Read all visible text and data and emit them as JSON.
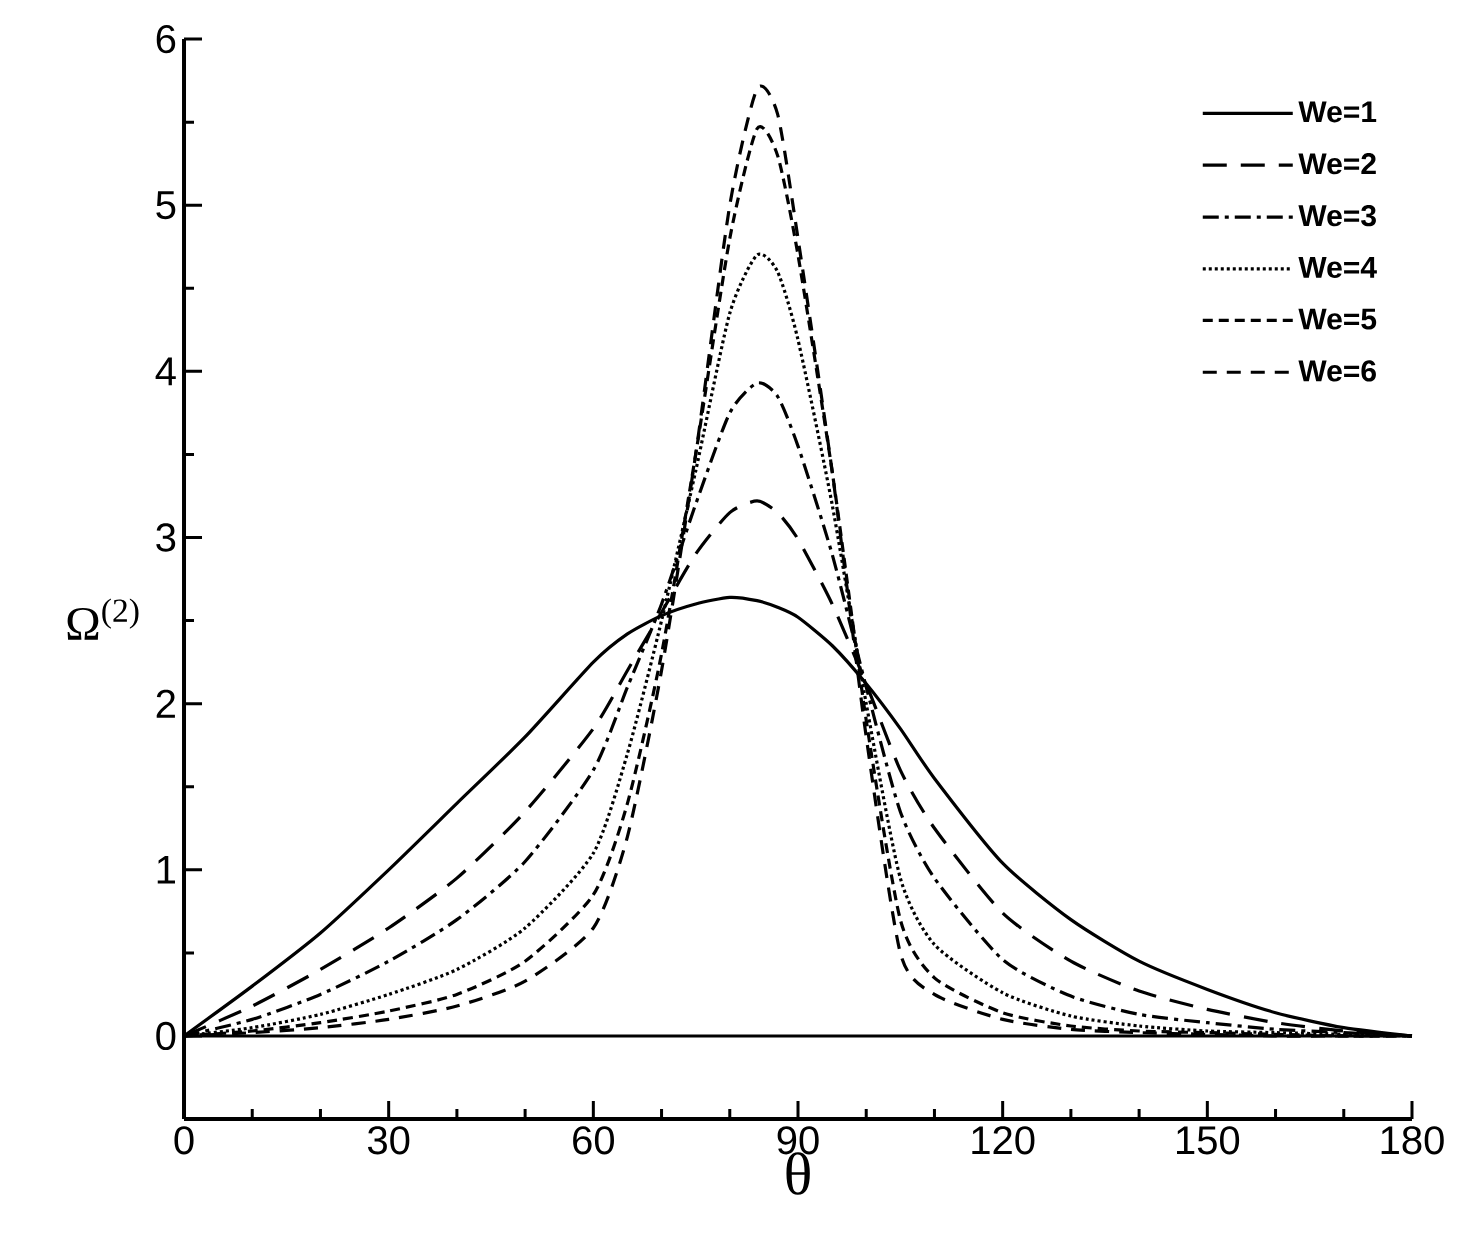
{
  "chart_data": {
    "type": "line",
    "xlabel": "θ",
    "ylabel": "Ω$^{(2)}$",
    "x": [
      0,
      10,
      20,
      30,
      40,
      50,
      60,
      65,
      70,
      75,
      80,
      84,
      87,
      90,
      95,
      100,
      105,
      110,
      120,
      130,
      140,
      150,
      160,
      170,
      180
    ],
    "series": [
      {
        "name": "We=1",
        "color": "#000000",
        "line_style": "solid",
        "values": [
          0,
          0.3,
          0.62,
          1.0,
          1.4,
          1.8,
          2.25,
          2.42,
          2.53,
          2.6,
          2.64,
          2.62,
          2.58,
          2.52,
          2.35,
          2.12,
          1.85,
          1.55,
          1.04,
          0.7,
          0.45,
          0.28,
          0.14,
          0.05,
          0
        ]
      },
      {
        "name": "We=2",
        "color": "#000000",
        "line_style": "loosely dashed",
        "values": [
          0,
          0.18,
          0.4,
          0.65,
          0.95,
          1.35,
          1.85,
          2.2,
          2.55,
          2.9,
          3.15,
          3.22,
          3.15,
          2.99,
          2.6,
          2.12,
          1.6,
          1.25,
          0.74,
          0.45,
          0.27,
          0.16,
          0.08,
          0.03,
          0
        ]
      },
      {
        "name": "We=3",
        "color": "#000000",
        "line_style": "dashdot",
        "values": [
          0,
          0.1,
          0.25,
          0.45,
          0.7,
          1.05,
          1.6,
          2.1,
          2.6,
          3.2,
          3.75,
          3.93,
          3.85,
          3.55,
          2.9,
          2.1,
          1.35,
          0.95,
          0.46,
          0.24,
          0.13,
          0.08,
          0.04,
          0.02,
          0
        ]
      },
      {
        "name": "We=4",
        "color": "#000000",
        "line_style": "dotted",
        "values": [
          0,
          0.05,
          0.13,
          0.25,
          0.4,
          0.65,
          1.1,
          1.7,
          2.5,
          3.4,
          4.35,
          4.7,
          4.6,
          4.19,
          3.2,
          2.0,
          0.95,
          0.55,
          0.26,
          0.12,
          0.06,
          0.03,
          0.02,
          0.01,
          0
        ]
      },
      {
        "name": "We=5",
        "color": "#000000",
        "line_style": "densely dashed",
        "values": [
          0,
          0.03,
          0.08,
          0.15,
          0.25,
          0.45,
          0.85,
          1.4,
          2.3,
          3.5,
          4.8,
          5.46,
          5.3,
          4.7,
          3.4,
          1.9,
          0.7,
          0.35,
          0.14,
          0.06,
          0.03,
          0.02,
          0.01,
          0,
          0
        ]
      },
      {
        "name": "We=6",
        "color": "#000000",
        "line_style": "dashed",
        "values": [
          0,
          0.02,
          0.05,
          0.1,
          0.18,
          0.33,
          0.65,
          1.2,
          2.2,
          3.5,
          5.0,
          5.7,
          5.55,
          4.8,
          3.4,
          1.8,
          0.5,
          0.25,
          0.1,
          0.04,
          0.02,
          0.01,
          0,
          0,
          0
        ]
      }
    ],
    "xlim": [
      0,
      180
    ],
    "ylim": [
      -0.5,
      6
    ],
    "xticks": [
      0,
      30,
      60,
      90,
      120,
      150,
      180
    ],
    "yticks": [
      0,
      1,
      2,
      3,
      4,
      5,
      6
    ],
    "ref_lines": [
      {
        "axis": "y",
        "value": 0
      }
    ],
    "legend": "top right"
  }
}
